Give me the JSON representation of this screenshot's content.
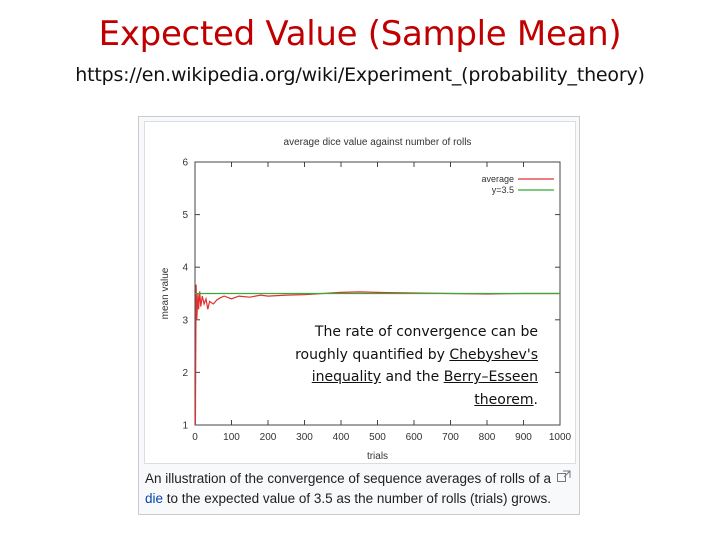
{
  "slide": {
    "title": "Expected Value (Sample Mean)",
    "url": "https://en.wikipedia.org/wiki/Experiment_(probability_theory)"
  },
  "overlay": {
    "t1": "The rate of convergence can be roughly quantified by ",
    "link1": "Chebyshev's inequality",
    "t2": " and the ",
    "link2": "Berry–Esseen theorem",
    "t3": "."
  },
  "caption": {
    "t1": "An illustration of the convergence of sequence averages of rolls of a ",
    "link": "die",
    "t2": " to the expected value of 3.5 as the number of rolls (trials) grows."
  },
  "icons": {
    "enlarge": "enlarge-icon"
  },
  "colors": {
    "title": "#c00000",
    "average": "#e03030",
    "reference": "#3aa83a",
    "link": "#0645ad"
  },
  "chart_data": {
    "type": "line",
    "title": "average dice value against number of rolls",
    "xlabel": "trials",
    "ylabel": "mean value",
    "xlim": [
      0,
      1000
    ],
    "ylim": [
      1,
      6
    ],
    "xticks": [
      0,
      100,
      200,
      300,
      400,
      500,
      600,
      700,
      800,
      900,
      1000
    ],
    "xtick_labels": [
      "0",
      "100",
      "200",
      "300",
      "400",
      "500",
      "600",
      "700",
      "800",
      "900",
      "1000"
    ],
    "yticks": [
      1,
      2,
      3,
      4,
      5,
      6
    ],
    "ytick_labels": [
      "1",
      "2",
      "3",
      "4",
      "5",
      "6"
    ],
    "legend_position": "top-right",
    "grid": false,
    "series": [
      {
        "name": "average",
        "color": "#e03030",
        "x": [
          1,
          3,
          5,
          8,
          10,
          13,
          16,
          20,
          25,
          30,
          35,
          40,
          50,
          60,
          70,
          80,
          100,
          120,
          150,
          180,
          200,
          250,
          300,
          350,
          400,
          450,
          500,
          600,
          700,
          800,
          900,
          1000
        ],
        "y": [
          1.0,
          3.67,
          3.0,
          3.5,
          3.2,
          3.54,
          3.25,
          3.45,
          3.3,
          3.4,
          3.2,
          3.35,
          3.3,
          3.38,
          3.42,
          3.45,
          3.4,
          3.45,
          3.43,
          3.47,
          3.45,
          3.47,
          3.48,
          3.5,
          3.52,
          3.53,
          3.52,
          3.51,
          3.5,
          3.49,
          3.5,
          3.5
        ]
      },
      {
        "name": "y=3.5",
        "color": "#3aa83a",
        "x": [
          0,
          1000
        ],
        "y": [
          3.5,
          3.5
        ]
      }
    ]
  }
}
